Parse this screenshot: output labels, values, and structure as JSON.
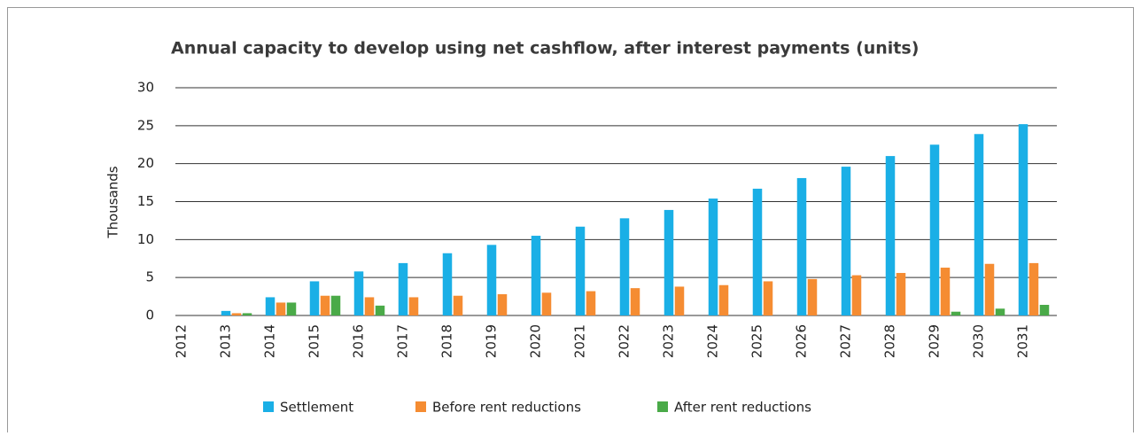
{
  "chart_data": {
    "type": "bar",
    "title": "Annual capacity to develop using net cashflow, after interest payments (units)",
    "y_axis_label": "Thousands",
    "categories": [
      "2012",
      "2013",
      "2014",
      "2015",
      "2016",
      "2017",
      "2018",
      "2019",
      "2020",
      "2021",
      "2022",
      "2023",
      "2024",
      "2025",
      "2026",
      "2027",
      "2028",
      "2029",
      "2030",
      "2031"
    ],
    "series": [
      {
        "name": "Settlement",
        "color": "#1aafe6",
        "values": [
          0,
          0.6,
          2.4,
          4.5,
          5.8,
          6.9,
          8.2,
          9.3,
          10.5,
          11.7,
          12.8,
          13.9,
          15.4,
          16.7,
          18.1,
          19.6,
          21.0,
          22.5,
          23.9,
          25.2
        ]
      },
      {
        "name": "Before rent reductions",
        "color": "#f58c32",
        "values": [
          0,
          0.3,
          1.7,
          2.6,
          2.4,
          2.4,
          2.6,
          2.8,
          3.0,
          3.2,
          3.6,
          3.8,
          4.0,
          4.5,
          4.8,
          5.3,
          5.6,
          6.3,
          6.8,
          6.9
        ]
      },
      {
        "name": "After rent reductions",
        "color": "#4aaa48",
        "values": [
          0,
          0.3,
          1.7,
          2.6,
          1.3,
          0,
          0,
          0,
          0,
          0,
          0,
          0,
          0,
          0,
          0,
          0,
          0,
          0.5,
          0.9,
          1.4
        ]
      }
    ],
    "ylim": [
      0,
      30
    ],
    "yticks": [
      0,
      5,
      10,
      15,
      20,
      25,
      30
    ],
    "grid": true,
    "legend": "bottom"
  }
}
